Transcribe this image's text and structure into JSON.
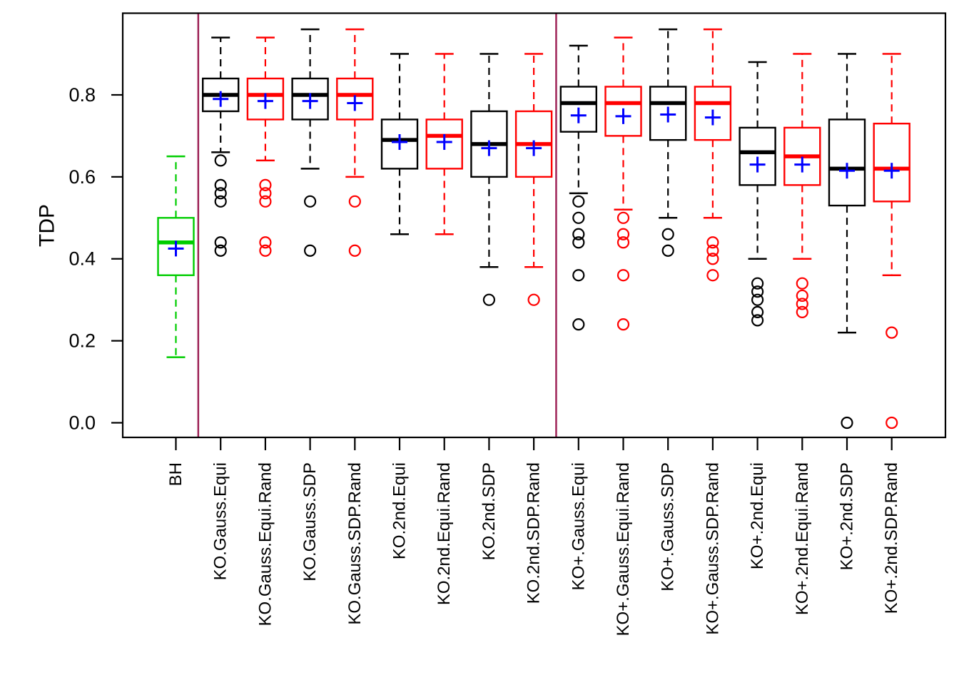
{
  "chart_data": {
    "type": "boxplot",
    "title": "",
    "xlabel": "",
    "ylabel": "TDP",
    "ylim": [
      -0.036,
      0.998
    ],
    "yticks": [
      0.0,
      0.2,
      0.4,
      0.6,
      0.8
    ],
    "ytick_labels": [
      "0.0",
      "0.2",
      "0.4",
      "0.6",
      "0.8"
    ],
    "grid": false,
    "legend": null,
    "group_separators_after": [
      0,
      8
    ],
    "colors": {
      "black": "#000000",
      "red": "#FF0000",
      "green": "#00CD00",
      "mean_marker": "#0000FF",
      "separator": "#9E2357",
      "axis": "#000000",
      "box_fill": "#FFFFFF"
    },
    "categories": [
      "BH",
      "KO.Gauss.Equi",
      "KO.Gauss.Equi.Rand",
      "KO.Gauss.SDP",
      "KO.Gauss.SDP.Rand",
      "KO.2nd.Equi",
      "KO.2nd.Equi.Rand",
      "KO.2nd.SDP",
      "KO.2nd.SDP.Rand",
      "KO+.Gauss.Equi",
      "KO+.Gauss.Equi.Rand",
      "KO+.Gauss.SDP",
      "KO+.Gauss.SDP.Rand",
      "KO+.2nd.Equi",
      "KO+.2nd.Equi.Rand",
      "KO+.2nd.SDP",
      "KO+.2nd.SDP.Rand"
    ],
    "boxes": [
      {
        "label": "BH",
        "color": "green",
        "whisker_low": 0.16,
        "q1": 0.36,
        "median": 0.44,
        "q3": 0.5,
        "whisker_high": 0.65,
        "mean": 0.425,
        "outliers": []
      },
      {
        "label": "KO.Gauss.Equi",
        "color": "black",
        "whisker_low": 0.66,
        "q1": 0.76,
        "median": 0.8,
        "q3": 0.84,
        "whisker_high": 0.94,
        "mean": 0.79,
        "outliers": [
          0.64,
          0.58,
          0.56,
          0.54,
          0.44,
          0.42
        ]
      },
      {
        "label": "KO.Gauss.Equi.Rand",
        "color": "red",
        "whisker_low": 0.64,
        "q1": 0.74,
        "median": 0.8,
        "q3": 0.84,
        "whisker_high": 0.94,
        "mean": 0.785,
        "outliers": [
          0.58,
          0.56,
          0.54,
          0.44,
          0.42
        ]
      },
      {
        "label": "KO.Gauss.SDP",
        "color": "black",
        "whisker_low": 0.62,
        "q1": 0.74,
        "median": 0.8,
        "q3": 0.84,
        "whisker_high": 0.96,
        "mean": 0.785,
        "outliers": [
          0.54,
          0.42
        ]
      },
      {
        "label": "KO.Gauss.SDP.Rand",
        "color": "red",
        "whisker_low": 0.6,
        "q1": 0.74,
        "median": 0.8,
        "q3": 0.84,
        "whisker_high": 0.96,
        "mean": 0.78,
        "outliers": [
          0.54,
          0.42
        ]
      },
      {
        "label": "KO.2nd.Equi",
        "color": "black",
        "whisker_low": 0.46,
        "q1": 0.62,
        "median": 0.69,
        "q3": 0.74,
        "whisker_high": 0.9,
        "mean": 0.685,
        "outliers": []
      },
      {
        "label": "KO.2nd.Equi.Rand",
        "color": "red",
        "whisker_low": 0.46,
        "q1": 0.62,
        "median": 0.7,
        "q3": 0.74,
        "whisker_high": 0.9,
        "mean": 0.685,
        "outliers": []
      },
      {
        "label": "KO.2nd.SDP",
        "color": "black",
        "whisker_low": 0.38,
        "q1": 0.6,
        "median": 0.68,
        "q3": 0.76,
        "whisker_high": 0.9,
        "mean": 0.67,
        "outliers": [
          0.3
        ]
      },
      {
        "label": "KO.2nd.SDP.Rand",
        "color": "red",
        "whisker_low": 0.38,
        "q1": 0.6,
        "median": 0.68,
        "q3": 0.76,
        "whisker_high": 0.9,
        "mean": 0.67,
        "outliers": [
          0.3
        ]
      },
      {
        "label": "KO+.Gauss.Equi",
        "color": "black",
        "whisker_low": 0.56,
        "q1": 0.71,
        "median": 0.78,
        "q3": 0.82,
        "whisker_high": 0.92,
        "mean": 0.75,
        "outliers": [
          0.54,
          0.5,
          0.46,
          0.44,
          0.36,
          0.24
        ]
      },
      {
        "label": "KO+.Gauss.Equi.Rand",
        "color": "red",
        "whisker_low": 0.52,
        "q1": 0.7,
        "median": 0.78,
        "q3": 0.82,
        "whisker_high": 0.94,
        "mean": 0.748,
        "outliers": [
          0.5,
          0.46,
          0.44,
          0.36,
          0.24
        ]
      },
      {
        "label": "KO+.Gauss.SDP",
        "color": "black",
        "whisker_low": 0.5,
        "q1": 0.69,
        "median": 0.78,
        "q3": 0.82,
        "whisker_high": 0.96,
        "mean": 0.752,
        "outliers": [
          0.46,
          0.42
        ]
      },
      {
        "label": "KO+.Gauss.SDP.Rand",
        "color": "red",
        "whisker_low": 0.5,
        "q1": 0.69,
        "median": 0.78,
        "q3": 0.82,
        "whisker_high": 0.96,
        "mean": 0.745,
        "outliers": [
          0.44,
          0.42,
          0.4,
          0.36
        ]
      },
      {
        "label": "KO+.2nd.Equi",
        "color": "black",
        "whisker_low": 0.4,
        "q1": 0.58,
        "median": 0.66,
        "q3": 0.72,
        "whisker_high": 0.88,
        "mean": 0.63,
        "outliers": [
          0.34,
          0.32,
          0.3,
          0.27,
          0.25
        ]
      },
      {
        "label": "KO+.2nd.Equi.Rand",
        "color": "red",
        "whisker_low": 0.4,
        "q1": 0.58,
        "median": 0.65,
        "q3": 0.72,
        "whisker_high": 0.9,
        "mean": 0.63,
        "outliers": [
          0.34,
          0.31,
          0.29,
          0.27
        ]
      },
      {
        "label": "KO+.2nd.SDP",
        "color": "black",
        "whisker_low": 0.22,
        "q1": 0.53,
        "median": 0.62,
        "q3": 0.74,
        "whisker_high": 0.9,
        "mean": 0.615,
        "outliers": [
          0.0
        ]
      },
      {
        "label": "KO+.2nd.SDP.Rand",
        "color": "red",
        "whisker_low": 0.36,
        "q1": 0.54,
        "median": 0.62,
        "q3": 0.73,
        "whisker_high": 0.9,
        "mean": 0.615,
        "outliers": [
          0.22,
          0.0
        ]
      }
    ]
  }
}
